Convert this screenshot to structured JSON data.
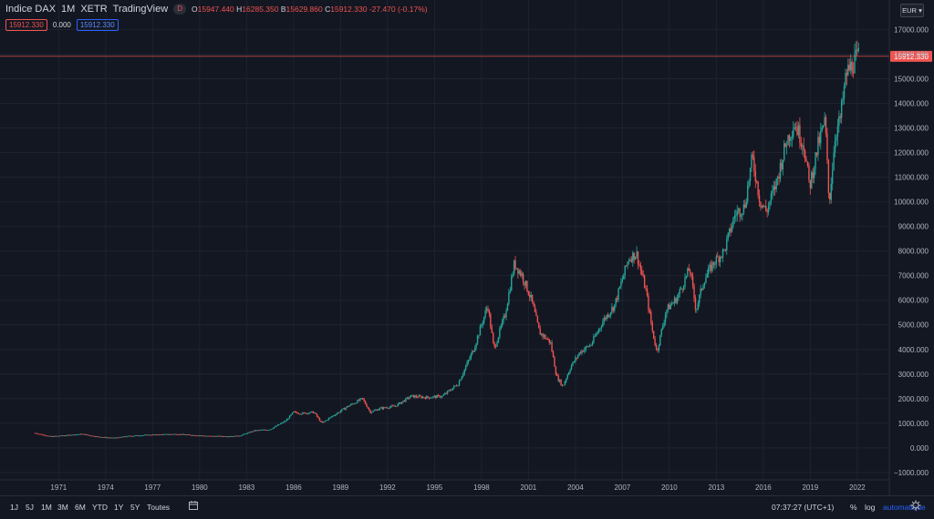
{
  "header": {
    "symbol": "Indice DAX",
    "interval": "1M",
    "exchange": "XETR",
    "source": "TradingView",
    "badge": "D",
    "ohlc": {
      "o_label": "O",
      "o": "15947.440",
      "h_label": "H",
      "h": "16285.350",
      "l_label": "B",
      "l": "15629.860",
      "c_label": "C",
      "c": "15912.330",
      "change": "-27.470 (-0.17%)"
    }
  },
  "indicators": {
    "val1": "15912.330",
    "val2": "0.000",
    "val3": "15912.330"
  },
  "currency": "EUR",
  "bottom": {
    "ranges": [
      "1J",
      "5J",
      "1M",
      "3M",
      "6M",
      "YTD",
      "1Y",
      "5Y",
      "Toutes"
    ],
    "time": "07:37:27 (UTC+1)",
    "percent": "%",
    "log": "log",
    "auto": "automatique"
  },
  "chart_data": {
    "type": "candlestick",
    "price_label": "15912.330",
    "last_price": 15912.33,
    "ylim": [
      -1300,
      18200
    ],
    "y_ticks": [
      "17000.000",
      "16000.000",
      "15000.000",
      "14000.000",
      "13000.000",
      "12000.000",
      "11000.000",
      "10000.000",
      "9000.000",
      "8000.000",
      "7000.000",
      "6000.000",
      "5000.000",
      "4000.000",
      "3000.000",
      "2000.000",
      "1000.000",
      "0.000",
      "−1000.000"
    ],
    "y_tick_values": [
      17000,
      16000,
      15000,
      14000,
      13000,
      12000,
      11000,
      10000,
      9000,
      8000,
      7000,
      6000,
      5000,
      4000,
      3000,
      2000,
      1000,
      0,
      -1000
    ],
    "x_ticks": [
      "1971",
      "1974",
      "1977",
      "1980",
      "1983",
      "1986",
      "1989",
      "1992",
      "1995",
      "1998",
      "2001",
      "2004",
      "2007",
      "2010",
      "2013",
      "2016",
      "2019",
      "2022"
    ],
    "xlim": [
      1969.0,
      2022.3
    ],
    "series": [
      {
        "x": 1969.5,
        "y": 600
      },
      {
        "x": 1970.5,
        "y": 460
      },
      {
        "x": 1971.5,
        "y": 510
      },
      {
        "x": 1972.5,
        "y": 560
      },
      {
        "x": 1973.5,
        "y": 450
      },
      {
        "x": 1974.5,
        "y": 400
      },
      {
        "x": 1975.5,
        "y": 480
      },
      {
        "x": 1976.5,
        "y": 520
      },
      {
        "x": 1977.5,
        "y": 540
      },
      {
        "x": 1978.5,
        "y": 560
      },
      {
        "x": 1979.5,
        "y": 520
      },
      {
        "x": 1980.5,
        "y": 480
      },
      {
        "x": 1981.5,
        "y": 470
      },
      {
        "x": 1982.5,
        "y": 480
      },
      {
        "x": 1983.5,
        "y": 700
      },
      {
        "x": 1984.5,
        "y": 750
      },
      {
        "x": 1985.5,
        "y": 1100
      },
      {
        "x": 1986.0,
        "y": 1450
      },
      {
        "x": 1986.5,
        "y": 1400
      },
      {
        "x": 1987.3,
        "y": 1450
      },
      {
        "x": 1987.8,
        "y": 1000
      },
      {
        "x": 1988.5,
        "y": 1300
      },
      {
        "x": 1989.5,
        "y": 1700
      },
      {
        "x": 1990.4,
        "y": 2000
      },
      {
        "x": 1990.9,
        "y": 1450
      },
      {
        "x": 1991.5,
        "y": 1600
      },
      {
        "x": 1992.5,
        "y": 1700
      },
      {
        "x": 1993.5,
        "y": 2100
      },
      {
        "x": 1994.5,
        "y": 2050
      },
      {
        "x": 1995.5,
        "y": 2100
      },
      {
        "x": 1996.5,
        "y": 2600
      },
      {
        "x": 1997.5,
        "y": 4000
      },
      {
        "x": 1998.4,
        "y": 5800
      },
      {
        "x": 1998.8,
        "y": 4000
      },
      {
        "x": 1999.5,
        "y": 5400
      },
      {
        "x": 2000.1,
        "y": 7500
      },
      {
        "x": 2000.6,
        "y": 7000
      },
      {
        "x": 2001.2,
        "y": 6000
      },
      {
        "x": 2001.7,
        "y": 4700
      },
      {
        "x": 2002.4,
        "y": 4300
      },
      {
        "x": 2002.8,
        "y": 2900
      },
      {
        "x": 2003.2,
        "y": 2500
      },
      {
        "x": 2003.7,
        "y": 3300
      },
      {
        "x": 2004.3,
        "y": 3900
      },
      {
        "x": 2005.0,
        "y": 4200
      },
      {
        "x": 2005.8,
        "y": 5200
      },
      {
        "x": 2006.5,
        "y": 5800
      },
      {
        "x": 2007.4,
        "y": 7700
      },
      {
        "x": 2007.9,
        "y": 7900
      },
      {
        "x": 2008.5,
        "y": 6400
      },
      {
        "x": 2008.9,
        "y": 4800
      },
      {
        "x": 2009.2,
        "y": 3900
      },
      {
        "x": 2009.8,
        "y": 5600
      },
      {
        "x": 2010.5,
        "y": 6100
      },
      {
        "x": 2011.3,
        "y": 7300
      },
      {
        "x": 2011.7,
        "y": 5600
      },
      {
        "x": 2012.2,
        "y": 6800
      },
      {
        "x": 2012.8,
        "y": 7500
      },
      {
        "x": 2013.5,
        "y": 8000
      },
      {
        "x": 2014.2,
        "y": 9500
      },
      {
        "x": 2014.8,
        "y": 9800
      },
      {
        "x": 2015.3,
        "y": 11800
      },
      {
        "x": 2015.8,
        "y": 10000
      },
      {
        "x": 2016.2,
        "y": 9600
      },
      {
        "x": 2016.8,
        "y": 10700
      },
      {
        "x": 2017.5,
        "y": 12500
      },
      {
        "x": 2018.0,
        "y": 13200
      },
      {
        "x": 2018.6,
        "y": 12300
      },
      {
        "x": 2018.95,
        "y": 10600
      },
      {
        "x": 2019.5,
        "y": 12300
      },
      {
        "x": 2019.95,
        "y": 13300
      },
      {
        "x": 2020.2,
        "y": 9900
      },
      {
        "x": 2020.6,
        "y": 12800
      },
      {
        "x": 2020.9,
        "y": 13300
      },
      {
        "x": 2021.3,
        "y": 15200
      },
      {
        "x": 2021.7,
        "y": 15600
      },
      {
        "x": 2022.1,
        "y": 15912
      }
    ]
  },
  "colors": {
    "up": "#26a69a",
    "down": "#ef5350",
    "background": "#131722",
    "grid": "#1f2330",
    "text": "#b2b5be",
    "price_line": "#ef5350",
    "accent": "#2962ff"
  }
}
